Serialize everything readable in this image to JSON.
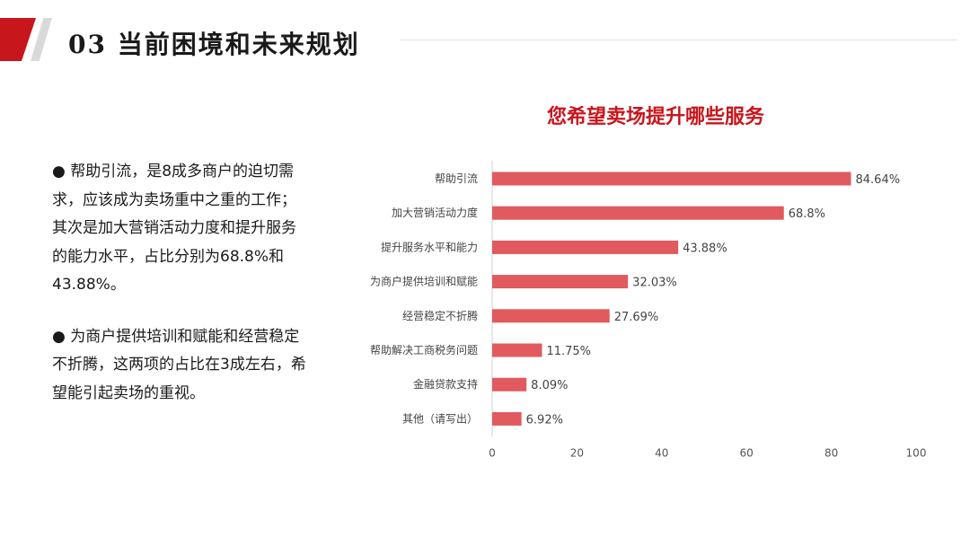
{
  "header": {
    "title": "03 当前困境和未来规划"
  },
  "text": {
    "paragraph1": "● 帮助引流，是8成多商户的迫切需求，应该成为卖场重中之重的工作；其次是加大营销活动力度和提升服务的能力水平，占比分别为68.8%和43.88%。",
    "paragraph2": "●  为商户提供培训和赋能和经营稳定不折腾，这两项的占比在3成左右，希望能引起卖场的重视。"
  },
  "colors": {
    "accent": "#c8161d",
    "bar": "#e05a5e"
  },
  "chart_data": {
    "type": "bar",
    "orientation": "horizontal",
    "title": "您希望卖场提升哪些服务",
    "categories": [
      "帮助引流",
      "加大营销活动力度",
      "提升服务水平和能力",
      "为商户提供培训和赋能",
      "经营稳定不折腾",
      "帮助解决工商税务问题",
      "金融贷款支持",
      "其他（请写出）"
    ],
    "values": [
      84.64,
      68.8,
      43.88,
      32.03,
      27.69,
      11.75,
      8.09,
      6.92
    ],
    "value_labels": [
      "84.64%",
      "68.8%",
      "43.88%",
      "32.03%",
      "27.69%",
      "11.75%",
      "8.09%",
      "6.92%"
    ],
    "xlim": [
      0,
      100
    ],
    "xticks": [
      0,
      20,
      40,
      60,
      80,
      100
    ],
    "grid": false,
    "legend": "none"
  }
}
